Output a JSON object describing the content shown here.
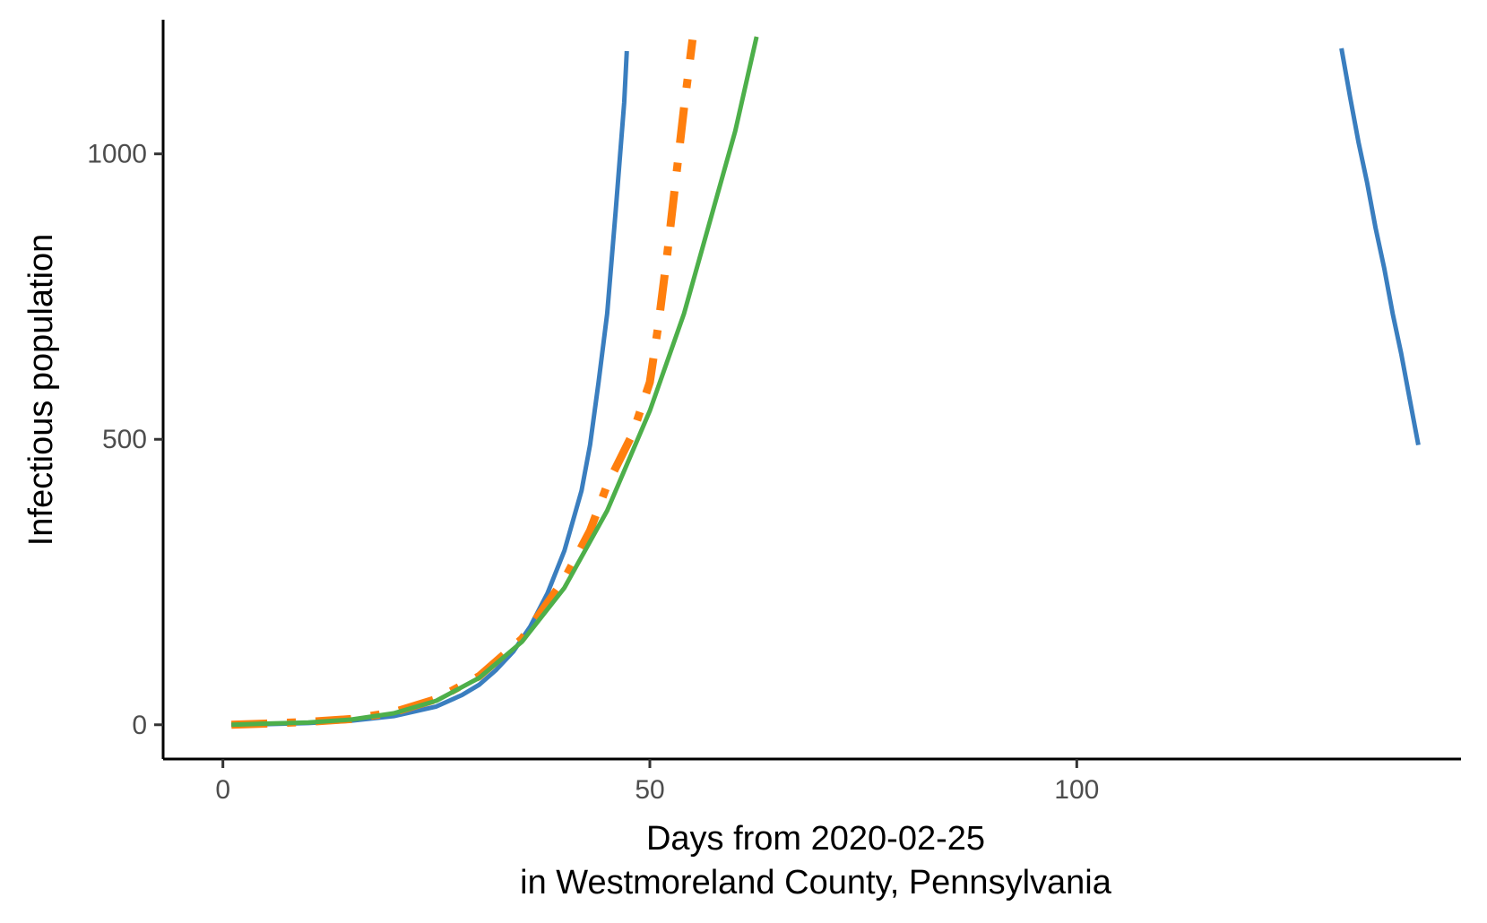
{
  "chart_data": {
    "type": "line",
    "title": "",
    "xlabel_lines": [
      "Days from 2020-02-25",
      "in Westmoreland County, Pennsylvania"
    ],
    "ylabel": "Infectious population",
    "xlim": [
      -7,
      145
    ],
    "ylim": [
      -60,
      1235
    ],
    "x_ticks": [
      0,
      50,
      100
    ],
    "x_tick_labels": [
      "0",
      "50",
      "100"
    ],
    "y_ticks": [
      0,
      500,
      1000
    ],
    "y_tick_labels": [
      "0",
      "500",
      "1000"
    ],
    "grid": false,
    "legend": "none",
    "series": [
      {
        "color": "#3a7ebf",
        "dash": "solid",
        "width": 5,
        "segments": [
          [
            [
              1,
              0
            ],
            [
              5,
              1
            ],
            [
              10,
              3
            ],
            [
              15,
              7
            ],
            [
              20,
              15
            ],
            [
              25,
              32
            ],
            [
              28,
              52
            ],
            [
              30,
              70
            ],
            [
              32,
              96
            ],
            [
              34,
              128
            ],
            [
              36,
              172
            ],
            [
              38,
              230
            ],
            [
              40,
              305
            ],
            [
              42,
              410
            ],
            [
              43,
              490
            ],
            [
              44,
              600
            ],
            [
              45,
              720
            ],
            [
              46,
              900
            ],
            [
              47,
              1090
            ],
            [
              47.3,
              1180
            ]
          ],
          [
            [
              131,
              1185
            ],
            [
              132,
              1100
            ],
            [
              133,
              1020
            ],
            [
              134,
              950
            ],
            [
              135,
              870
            ],
            [
              136,
              800
            ],
            [
              137,
              720
            ],
            [
              138,
              650
            ],
            [
              139,
              570
            ],
            [
              140,
              490
            ]
          ]
        ]
      },
      {
        "color": "#ff7f0e",
        "dash": "dotdash",
        "width": 9,
        "segments": [
          [
            [
              1,
              0
            ],
            [
              5,
              2
            ],
            [
              10,
              5
            ],
            [
              15,
              10
            ],
            [
              20,
              22
            ],
            [
              25,
              45
            ],
            [
              30,
              85
            ],
            [
              35,
              150
            ],
            [
              40,
              255
            ],
            [
              43,
              340
            ],
            [
              45,
              420
            ],
            [
              47,
              480
            ],
            [
              48,
              510
            ],
            [
              50,
              600
            ],
            [
              51,
              700
            ],
            [
              52,
              820
            ],
            [
              53,
              950
            ],
            [
              54,
              1080
            ],
            [
              55,
              1200
            ]
          ]
        ]
      },
      {
        "color": "#d62728",
        "dash": "longdash",
        "width": 4,
        "segments": [
          [
            [
              1,
              0
            ],
            [
              5,
              2
            ],
            [
              10,
              4
            ],
            [
              15,
              9
            ],
            [
              20,
              20
            ],
            [
              25,
              42
            ],
            [
              30,
              82
            ],
            [
              35,
              145
            ],
            [
              40,
              240
            ],
            [
              45,
              375
            ],
            [
              50,
              550
            ],
            [
              54,
              720
            ],
            [
              57,
              880
            ],
            [
              60,
              1040
            ],
            [
              62.5,
              1205
            ]
          ]
        ]
      },
      {
        "color": "#4daf4a",
        "dash": "solid",
        "width": 5,
        "segments": [
          [
            [
              1,
              0
            ],
            [
              5,
              2
            ],
            [
              10,
              4
            ],
            [
              15,
              9
            ],
            [
              20,
              20
            ],
            [
              25,
              42
            ],
            [
              30,
              82
            ],
            [
              35,
              145
            ],
            [
              40,
              240
            ],
            [
              45,
              375
            ],
            [
              50,
              550
            ],
            [
              54,
              720
            ],
            [
              57,
              880
            ],
            [
              60,
              1040
            ],
            [
              62.5,
              1205
            ]
          ]
        ]
      }
    ]
  }
}
